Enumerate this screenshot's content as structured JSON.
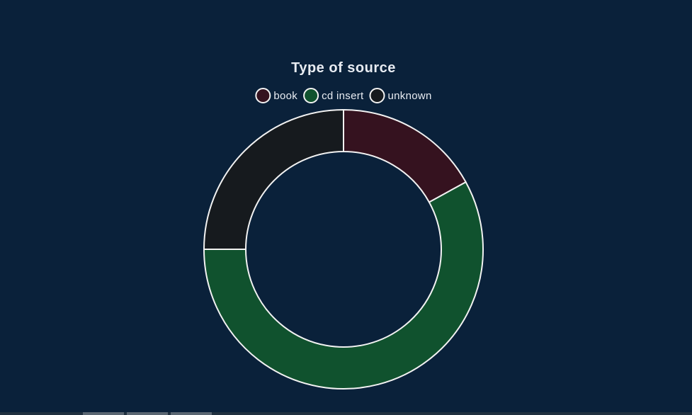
{
  "chart_data": {
    "type": "pie",
    "title": "Type of source",
    "legend_position": "top",
    "labels": [
      "book",
      "cd insert",
      "unknown"
    ],
    "values": [
      17,
      58,
      25
    ],
    "colors": [
      "#35121f",
      "#10522e",
      "#161a1e"
    ],
    "border_color": "#f2f2f2",
    "start_angle_deg": 0
  },
  "page": {
    "background": "#0a213a",
    "text_color": "#e8ecf2"
  }
}
